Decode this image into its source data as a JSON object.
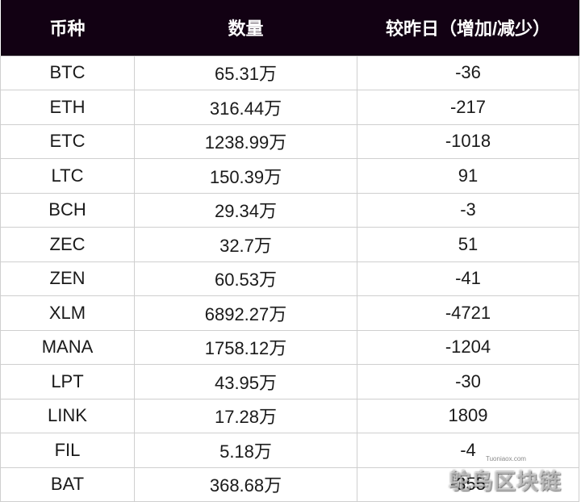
{
  "table": {
    "headers": [
      "币种",
      "数量",
      "较昨日（增加/减少）"
    ],
    "rows": [
      [
        "BTC",
        "65.31万",
        "-36"
      ],
      [
        "ETH",
        "316.44万",
        "-217"
      ],
      [
        "ETC",
        "1238.99万",
        "-1018"
      ],
      [
        "LTC",
        "150.39万",
        "91"
      ],
      [
        "BCH",
        "29.34万",
        "-3"
      ],
      [
        "ZEC",
        "32.7万",
        "51"
      ],
      [
        "ZEN",
        "60.53万",
        "-41"
      ],
      [
        "XLM",
        "6892.27万",
        "-4721"
      ],
      [
        "MANA",
        "1758.12万",
        "-1204"
      ],
      [
        "LPT",
        "43.95万",
        "-30"
      ],
      [
        "LINK",
        "17.28万",
        "1809"
      ],
      [
        "FIL",
        "5.18万",
        "-4"
      ],
      [
        "BAT",
        "368.68万",
        "-355"
      ]
    ]
  },
  "watermark": {
    "site": "Tuoniaox.com",
    "logo_text": "鸵鸟区块链"
  },
  "colors": {
    "header_bg": "#120113",
    "header_text": "#ffffff",
    "cell_text": "#1a1a1a",
    "grid_line": "#cfcfcf"
  }
}
